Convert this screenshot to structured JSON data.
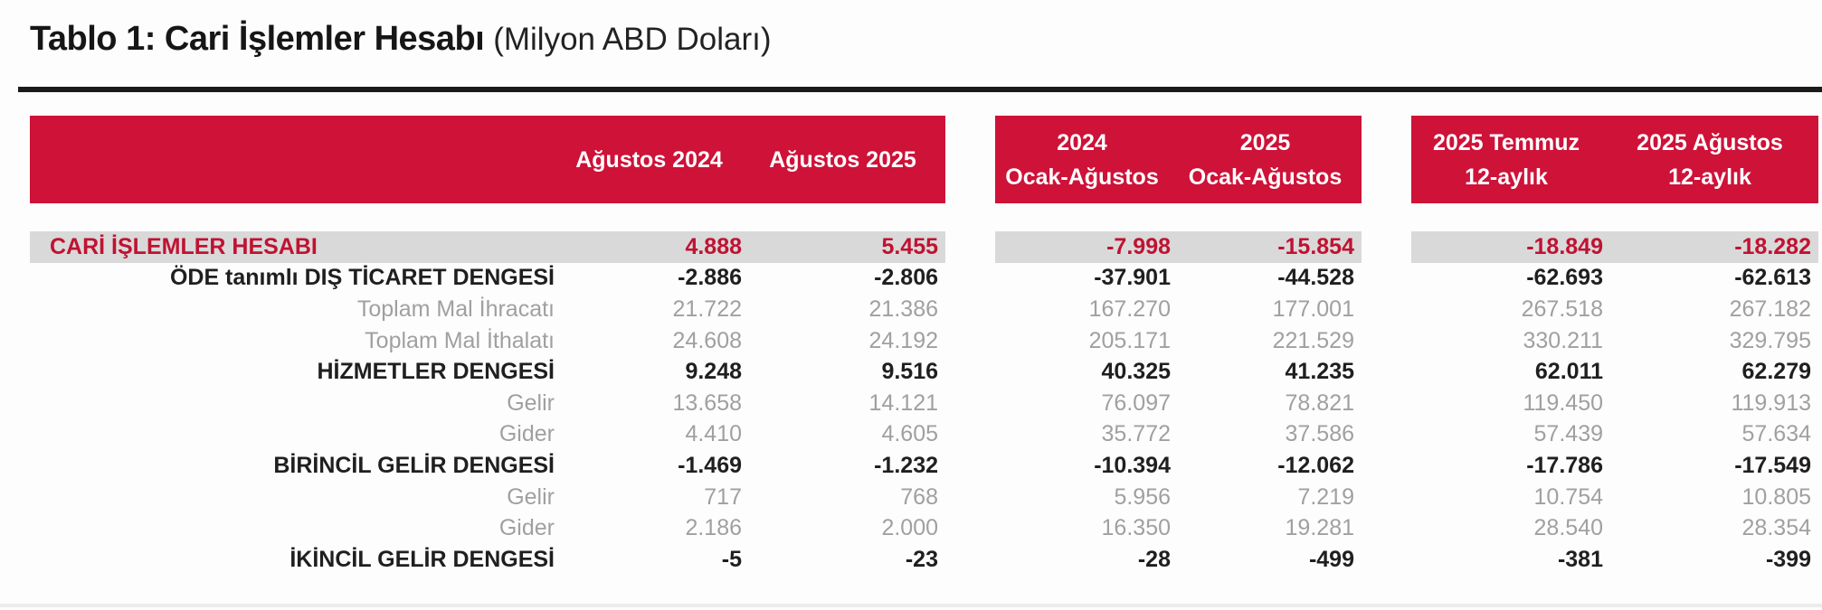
{
  "title": {
    "main": "Tablo 1: Cari İşlemler Hesabı",
    "unit": "(Milyon ABD Doları)"
  },
  "colors": {
    "header_red": "#ce1238",
    "highlight_gray": "#d9d9d9",
    "highlight_text_red": "#c01232",
    "sub_text_gray": "#a0a0a0",
    "bold_text": "#1f1f1f"
  },
  "table": {
    "column_groups": [
      {
        "columns": [
          {
            "line1": "Ağustos 2024",
            "line2": ""
          },
          {
            "line1": "Ağustos 2025",
            "line2": ""
          }
        ]
      },
      {
        "columns": [
          {
            "line1": "2024",
            "line2": "Ocak-Ağustos"
          },
          {
            "line1": "2025",
            "line2": "Ocak-Ağustos"
          }
        ]
      },
      {
        "columns": [
          {
            "line1": "2025 Temmuz",
            "line2": "12-aylık"
          },
          {
            "line1": "2025 Ağustos",
            "line2": "12-aylık"
          }
        ]
      }
    ],
    "rows": [
      {
        "label": "CARİ İŞLEMLER HESABI",
        "style": "highlight",
        "values": [
          "4.888",
          "5.455",
          "-7.998",
          "-15.854",
          "-18.849",
          "-18.282"
        ]
      },
      {
        "label": "ÖDE tanımlı DIŞ TİCARET DENGESİ",
        "style": "bold",
        "values": [
          "-2.886",
          "-2.806",
          "-37.901",
          "-44.528",
          "-62.693",
          "-62.613"
        ]
      },
      {
        "label": "Toplam Mal İhracatı",
        "style": "sub",
        "values": [
          "21.722",
          "21.386",
          "167.270",
          "177.001",
          "267.518",
          "267.182"
        ]
      },
      {
        "label": "Toplam Mal İthalatı",
        "style": "sub",
        "values": [
          "24.608",
          "24.192",
          "205.171",
          "221.529",
          "330.211",
          "329.795"
        ]
      },
      {
        "label": "HİZMETLER DENGESİ",
        "style": "bold",
        "values": [
          "9.248",
          "9.516",
          "40.325",
          "41.235",
          "62.011",
          "62.279"
        ]
      },
      {
        "label": "Gelir",
        "style": "sub",
        "values": [
          "13.658",
          "14.121",
          "76.097",
          "78.821",
          "119.450",
          "119.913"
        ]
      },
      {
        "label": "Gider",
        "style": "sub",
        "values": [
          "4.410",
          "4.605",
          "35.772",
          "37.586",
          "57.439",
          "57.634"
        ]
      },
      {
        "label": "BİRİNCİL GELİR DENGESİ",
        "style": "bold",
        "values": [
          "-1.469",
          "-1.232",
          "-10.394",
          "-12.062",
          "-17.786",
          "-17.549"
        ]
      },
      {
        "label": "Gelir",
        "style": "sub",
        "values": [
          "717",
          "768",
          "5.956",
          "7.219",
          "10.754",
          "10.805"
        ]
      },
      {
        "label": "Gider",
        "style": "sub",
        "values": [
          "2.186",
          "2.000",
          "16.350",
          "19.281",
          "28.540",
          "28.354"
        ]
      },
      {
        "label": "İKİNCİL GELİR DENGESİ",
        "style": "bold",
        "values": [
          "-5",
          "-23",
          "-28",
          "-499",
          "-381",
          "-399"
        ]
      }
    ]
  }
}
